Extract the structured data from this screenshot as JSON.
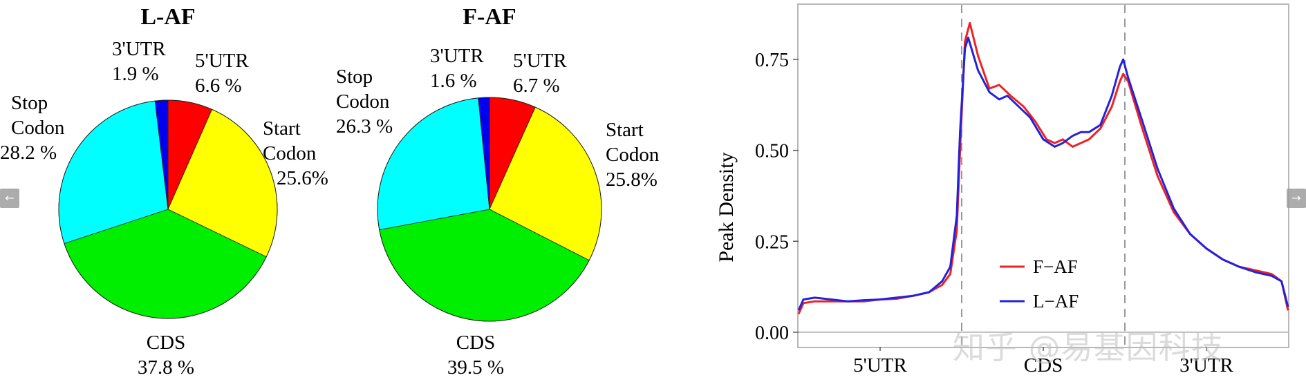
{
  "nav": {
    "prev_icon": "←",
    "next_icon": "→"
  },
  "watermark": "知乎 @易基因科技",
  "chart_data": [
    {
      "type": "pie",
      "title": "L-AF",
      "slices": [
        {
          "label": "5'UTR",
          "value": 6.6,
          "display": "6.6 %",
          "color": "#ff0000"
        },
        {
          "label": "Start Codon",
          "value": 25.6,
          "display": "25.6%",
          "color": "#ffff00"
        },
        {
          "label": "CDS",
          "value": 37.8,
          "display": "37.8 %",
          "color": "#00ee00"
        },
        {
          "label": "Stop Codon",
          "value": 28.2,
          "display": "28.2 %",
          "color": "#00ffff"
        },
        {
          "label": "3'UTR",
          "value": 1.9,
          "display": "1.9 %",
          "color": "#0000ee"
        }
      ]
    },
    {
      "type": "pie",
      "title": "F-AF",
      "slices": [
        {
          "label": "5'UTR",
          "value": 6.7,
          "display": "6.7 %",
          "color": "#ff0000"
        },
        {
          "label": "Start Codon",
          "value": 25.8,
          "display": "25.8%",
          "color": "#ffff00"
        },
        {
          "label": "CDS",
          "value": 39.5,
          "display": "39.5 %",
          "color": "#00ee00"
        },
        {
          "label": "Stop Codon",
          "value": 26.3,
          "display": "26.3 %",
          "color": "#00ffff"
        },
        {
          "label": "3'UTR",
          "value": 1.6,
          "display": "1.6 %",
          "color": "#0000ee"
        }
      ]
    },
    {
      "type": "line",
      "ylabel": "Peak Density",
      "xlabel": "",
      "x_regions": [
        "5'UTR",
        "CDS",
        "3'UTR"
      ],
      "region_boundaries": [
        1,
        2
      ],
      "xlim": [
        0,
        3
      ],
      "ylim": [
        -0.04,
        0.9
      ],
      "yticks": [
        0.0,
        0.25,
        0.5,
        0.75
      ],
      "ytick_labels": [
        "0.00",
        "0.25",
        "0.50",
        "0.75"
      ],
      "legend": {
        "position": "bottom-center"
      },
      "series": [
        {
          "name": "F−AF",
          "color": "#ee2222",
          "points": [
            [
              0.0,
              0.05
            ],
            [
              0.03,
              0.08
            ],
            [
              0.1,
              0.085
            ],
            [
              0.2,
              0.085
            ],
            [
              0.3,
              0.085
            ],
            [
              0.4,
              0.085
            ],
            [
              0.5,
              0.09
            ],
            [
              0.6,
              0.092
            ],
            [
              0.7,
              0.1
            ],
            [
              0.8,
              0.11
            ],
            [
              0.88,
              0.13
            ],
            [
              0.93,
              0.16
            ],
            [
              0.97,
              0.28
            ],
            [
              0.99,
              0.5
            ],
            [
              1.02,
              0.8
            ],
            [
              1.05,
              0.85
            ],
            [
              1.1,
              0.76
            ],
            [
              1.17,
              0.67
            ],
            [
              1.23,
              0.68
            ],
            [
              1.3,
              0.65
            ],
            [
              1.38,
              0.62
            ],
            [
              1.45,
              0.58
            ],
            [
              1.52,
              0.53
            ],
            [
              1.57,
              0.52
            ],
            [
              1.62,
              0.53
            ],
            [
              1.68,
              0.51
            ],
            [
              1.73,
              0.52
            ],
            [
              1.78,
              0.53
            ],
            [
              1.85,
              0.56
            ],
            [
              1.92,
              0.62
            ],
            [
              1.97,
              0.69
            ],
            [
              1.99,
              0.71
            ],
            [
              2.02,
              0.69
            ],
            [
              2.1,
              0.57
            ],
            [
              2.2,
              0.43
            ],
            [
              2.3,
              0.33
            ],
            [
              2.4,
              0.27
            ],
            [
              2.5,
              0.23
            ],
            [
              2.6,
              0.2
            ],
            [
              2.7,
              0.18
            ],
            [
              2.8,
              0.17
            ],
            [
              2.9,
              0.16
            ],
            [
              2.96,
              0.14
            ],
            [
              3.0,
              0.06
            ]
          ]
        },
        {
          "name": "L−AF",
          "color": "#2222dd",
          "points": [
            [
              0.0,
              0.06
            ],
            [
              0.03,
              0.09
            ],
            [
              0.1,
              0.095
            ],
            [
              0.2,
              0.09
            ],
            [
              0.3,
              0.085
            ],
            [
              0.4,
              0.088
            ],
            [
              0.5,
              0.09
            ],
            [
              0.6,
              0.095
            ],
            [
              0.7,
              0.1
            ],
            [
              0.8,
              0.11
            ],
            [
              0.88,
              0.14
            ],
            [
              0.93,
              0.18
            ],
            [
              0.97,
              0.32
            ],
            [
              0.99,
              0.55
            ],
            [
              1.02,
              0.78
            ],
            [
              1.04,
              0.81
            ],
            [
              1.1,
              0.72
            ],
            [
              1.17,
              0.66
            ],
            [
              1.23,
              0.64
            ],
            [
              1.28,
              0.65
            ],
            [
              1.35,
              0.62
            ],
            [
              1.42,
              0.59
            ],
            [
              1.5,
              0.53
            ],
            [
              1.57,
              0.51
            ],
            [
              1.62,
              0.52
            ],
            [
              1.68,
              0.54
            ],
            [
              1.73,
              0.55
            ],
            [
              1.78,
              0.55
            ],
            [
              1.85,
              0.57
            ],
            [
              1.92,
              0.65
            ],
            [
              1.97,
              0.73
            ],
            [
              1.99,
              0.75
            ],
            [
              2.02,
              0.7
            ],
            [
              2.1,
              0.59
            ],
            [
              2.2,
              0.45
            ],
            [
              2.3,
              0.34
            ],
            [
              2.4,
              0.27
            ],
            [
              2.5,
              0.23
            ],
            [
              2.6,
              0.2
            ],
            [
              2.7,
              0.18
            ],
            [
              2.8,
              0.165
            ],
            [
              2.9,
              0.155
            ],
            [
              2.96,
              0.14
            ],
            [
              3.0,
              0.07
            ]
          ]
        }
      ]
    }
  ]
}
